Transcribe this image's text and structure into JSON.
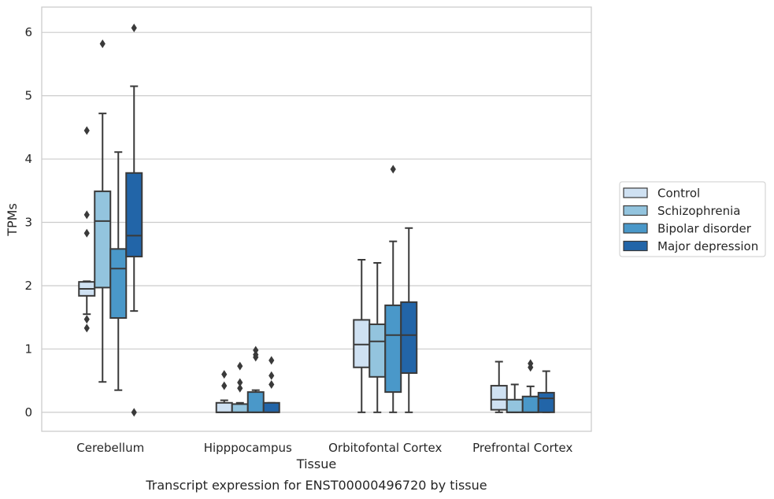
{
  "chart_data": {
    "type": "box",
    "title": "",
    "caption": "Transcript expression for ENST00000496720 by tissue",
    "xlabel": "Tissue",
    "ylabel": "TPMs",
    "ylim": [
      -0.3,
      6.4
    ],
    "yticks": [
      0,
      1,
      2,
      3,
      4,
      5,
      6
    ],
    "grid": true,
    "legend_position": "right",
    "categories": [
      "Cerebellum",
      "Hipppocampus",
      "Orbitofontal Cortex",
      "Prefrontal Cortex"
    ],
    "series": [
      {
        "name": "Control",
        "color": "#cfe1f2",
        "boxes": [
          {
            "whislo": 1.55,
            "q1": 1.84,
            "med": 1.95,
            "q3": 2.06,
            "whishi": 2.07,
            "fliers": [
              1.47,
              1.33,
              2.83,
              3.12,
              4.45
            ]
          },
          {
            "whislo": 0.0,
            "q1": 0.0,
            "med": 0.0,
            "q3": 0.15,
            "whishi": 0.19,
            "fliers": [
              0.42,
              0.6
            ]
          },
          {
            "whislo": 0.0,
            "q1": 0.71,
            "med": 1.07,
            "q3": 1.46,
            "whishi": 2.41,
            "fliers": []
          },
          {
            "whislo": 0.0,
            "q1": 0.04,
            "med": 0.2,
            "q3": 0.42,
            "whishi": 0.8,
            "fliers": []
          }
        ]
      },
      {
        "name": "Schizophrenia",
        "color": "#93c4de",
        "boxes": [
          {
            "whislo": 0.48,
            "q1": 1.97,
            "med": 3.02,
            "q3": 3.49,
            "whishi": 4.72,
            "fliers": [
              5.82
            ]
          },
          {
            "whislo": 0.0,
            "q1": 0.0,
            "med": 0.0,
            "q3": 0.13,
            "whishi": 0.15,
            "fliers": [
              0.38,
              0.47,
              0.73
            ]
          },
          {
            "whislo": 0.0,
            "q1": 0.56,
            "med": 1.12,
            "q3": 1.39,
            "whishi": 2.36,
            "fliers": []
          },
          {
            "whislo": 0.0,
            "q1": 0.0,
            "med": 0.0,
            "q3": 0.2,
            "whishi": 0.44,
            "fliers": []
          }
        ]
      },
      {
        "name": "Bipolar disorder",
        "color": "#4a98c9",
        "boxes": [
          {
            "whislo": 0.35,
            "q1": 1.49,
            "med": 2.27,
            "q3": 2.58,
            "whishi": 4.11,
            "fliers": []
          },
          {
            "whislo": 0.0,
            "q1": 0.0,
            "med": 0.0,
            "q3": 0.32,
            "whishi": 0.35,
            "fliers": [
              0.87,
              0.91,
              0.98
            ]
          },
          {
            "whislo": 0.0,
            "q1": 0.32,
            "med": 1.22,
            "q3": 1.69,
            "whishi": 2.7,
            "fliers": [
              3.84
            ]
          },
          {
            "whislo": 0.0,
            "q1": 0.0,
            "med": 0.0,
            "q3": 0.25,
            "whishi": 0.41,
            "fliers": [
              0.71,
              0.77
            ]
          }
        ]
      },
      {
        "name": "Major depression",
        "color": "#2265a8",
        "boxes": [
          {
            "whislo": 1.6,
            "q1": 2.46,
            "med": 2.79,
            "q3": 3.78,
            "whishi": 5.15,
            "fliers": [
              6.07,
              0.0
            ]
          },
          {
            "whislo": 0.0,
            "q1": 0.0,
            "med": 0.0,
            "q3": 0.15,
            "whishi": 0.15,
            "fliers": [
              0.44,
              0.58,
              0.82
            ]
          },
          {
            "whislo": 0.0,
            "q1": 0.62,
            "med": 1.22,
            "q3": 1.74,
            "whishi": 2.91,
            "fliers": []
          },
          {
            "whislo": 0.0,
            "q1": 0.0,
            "med": 0.22,
            "q3": 0.31,
            "whishi": 0.65,
            "fliers": []
          }
        ]
      }
    ]
  }
}
